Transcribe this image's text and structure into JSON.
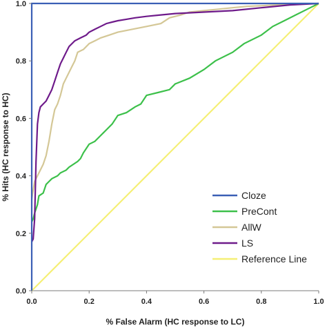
{
  "chart_data": {
    "type": "line",
    "title": "",
    "xlabel": "% False Alarm (HC response to LC)",
    "ylabel": "% Hits (HC response to HC)",
    "xlim": [
      0,
      1
    ],
    "ylim": [
      0,
      1
    ],
    "x_ticks": [
      "0.0",
      "0.2",
      "0.4",
      "0.6",
      "0.8",
      "1.0"
    ],
    "y_ticks": [
      "0.0",
      "0.2",
      "0.4",
      "0.6",
      "0.8",
      "1.0"
    ],
    "grid": false,
    "legend_position": "bottom-right",
    "series": [
      {
        "name": "Cloze",
        "color": "#3a5fb5",
        "x": [
          0,
          0,
          1
        ],
        "y": [
          0,
          1,
          1
        ]
      },
      {
        "name": "PreCont",
        "color": "#3cc04a",
        "x": [
          0,
          0.005,
          0.01,
          0.02,
          0.025,
          0.04,
          0.05,
          0.06,
          0.07,
          0.09,
          0.1,
          0.12,
          0.13,
          0.16,
          0.17,
          0.18,
          0.2,
          0.22,
          0.24,
          0.25,
          0.26,
          0.28,
          0.3,
          0.33,
          0.36,
          0.38,
          0.4,
          0.44,
          0.48,
          0.5,
          0.55,
          0.6,
          0.64,
          0.7,
          0.74,
          0.8,
          0.84,
          0.88,
          0.92,
          0.96,
          0.98,
          1.0
        ],
        "y": [
          0.24,
          0.25,
          0.27,
          0.3,
          0.33,
          0.34,
          0.37,
          0.38,
          0.39,
          0.4,
          0.41,
          0.42,
          0.43,
          0.45,
          0.46,
          0.48,
          0.51,
          0.52,
          0.54,
          0.55,
          0.56,
          0.58,
          0.61,
          0.62,
          0.64,
          0.65,
          0.68,
          0.69,
          0.7,
          0.72,
          0.74,
          0.77,
          0.8,
          0.83,
          0.86,
          0.89,
          0.92,
          0.94,
          0.96,
          0.98,
          0.99,
          1.0
        ]
      },
      {
        "name": "AllW",
        "color": "#d4c796",
        "x": [
          0,
          0.005,
          0.01,
          0.02,
          0.03,
          0.04,
          0.05,
          0.06,
          0.07,
          0.08,
          0.09,
          0.1,
          0.11,
          0.12,
          0.14,
          0.15,
          0.16,
          0.18,
          0.2,
          0.22,
          0.24,
          0.27,
          0.3,
          0.35,
          0.4,
          0.45,
          0.48,
          0.52,
          0.55,
          0.6,
          0.65,
          0.7,
          0.75,
          0.8,
          0.85,
          0.9,
          0.95,
          1.0
        ],
        "y": [
          0.32,
          0.35,
          0.38,
          0.4,
          0.42,
          0.44,
          0.47,
          0.52,
          0.58,
          0.63,
          0.65,
          0.68,
          0.72,
          0.74,
          0.78,
          0.8,
          0.83,
          0.84,
          0.86,
          0.87,
          0.88,
          0.89,
          0.9,
          0.91,
          0.92,
          0.93,
          0.95,
          0.96,
          0.97,
          0.975,
          0.98,
          0.985,
          0.99,
          0.992,
          0.995,
          0.997,
          0.999,
          1.0
        ]
      },
      {
        "name": "LS",
        "color": "#6e1a8a",
        "x": [
          0,
          0.005,
          0.01,
          0.015,
          0.02,
          0.025,
          0.03,
          0.04,
          0.05,
          0.06,
          0.07,
          0.08,
          0.09,
          0.1,
          0.11,
          0.12,
          0.13,
          0.15,
          0.17,
          0.19,
          0.2,
          0.22,
          0.24,
          0.26,
          0.28,
          0.3,
          0.33,
          0.36,
          0.4,
          0.45,
          0.5,
          0.6,
          0.7,
          0.8,
          0.9,
          1.0
        ],
        "y": [
          0.17,
          0.18,
          0.25,
          0.45,
          0.58,
          0.62,
          0.64,
          0.65,
          0.66,
          0.68,
          0.7,
          0.73,
          0.76,
          0.79,
          0.81,
          0.83,
          0.85,
          0.87,
          0.88,
          0.89,
          0.9,
          0.91,
          0.92,
          0.93,
          0.935,
          0.94,
          0.945,
          0.95,
          0.955,
          0.96,
          0.965,
          0.97,
          0.975,
          0.985,
          0.995,
          1.0
        ]
      },
      {
        "name": "Reference Line",
        "color": "#f5ef74",
        "x": [
          0,
          1
        ],
        "y": [
          0,
          1
        ]
      }
    ]
  }
}
